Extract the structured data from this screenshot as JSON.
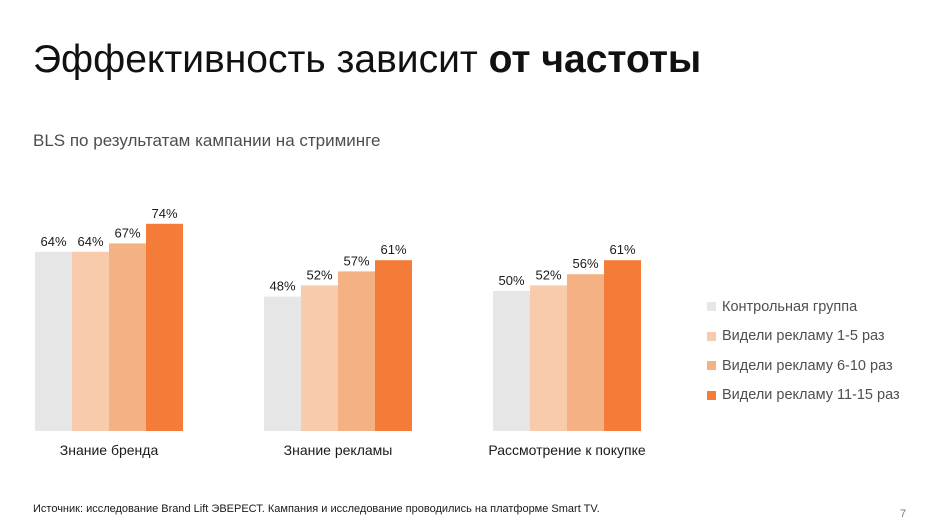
{
  "slide": {
    "title_regular": "Эффективность зависит ",
    "title_bold": "от частоты",
    "source": "Источник: исследование Brand Lift ЭВЕРЕСТ. Кампания и исследование проводились на платформе Smart TV.",
    "page_number": "7"
  },
  "chart_data": {
    "type": "bar",
    "title": "BLS по результатам кампании на стриминге",
    "categories": [
      "Знание бренда",
      "Знание рекламы",
      "Рассмотрение к покупке"
    ],
    "series": [
      {
        "name": "Контрольная группа",
        "color": "#e6e6e6",
        "values": [
          64,
          48,
          50
        ],
        "labels": [
          "64%",
          "48%",
          "50%"
        ]
      },
      {
        "name": "Видели рекламу 1-5 раз",
        "color": "#f8cbad",
        "values": [
          64,
          52,
          52
        ],
        "labels": [
          "64%",
          "52%",
          "52%"
        ]
      },
      {
        "name": "Видели рекламу 6-10 раз",
        "color": "#f4b183",
        "values": [
          67,
          57,
          56
        ],
        "labels": [
          "67%",
          "57%",
          "56%"
        ]
      },
      {
        "name": "Видели рекламу 11-15 раз",
        "color": "#f47c38",
        "values": [
          74,
          61,
          61
        ],
        "labels": [
          "74%",
          "61%",
          "61%"
        ]
      }
    ],
    "ylim": [
      0,
      100
    ],
    "legend_position": "right"
  }
}
